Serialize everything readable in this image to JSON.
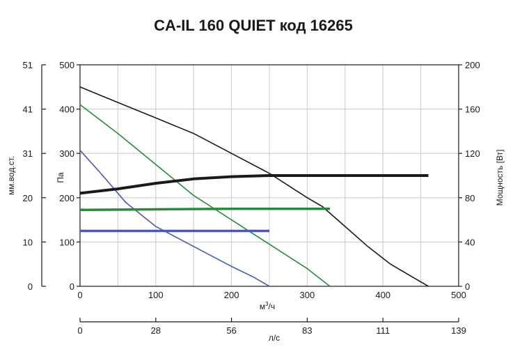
{
  "chart_data": {
    "type": "line",
    "title": "CA-IL 160 QUIET код 16265",
    "x": {
      "label_main": "м",
      "label_sup": "3",
      "label_tail": "/ч",
      "range": [
        0,
        500
      ],
      "ticks": [
        "0",
        "100",
        "200",
        "300",
        "400",
        "500"
      ]
    },
    "x2": {
      "label": "л/с",
      "range": [
        0,
        139
      ],
      "ticks": [
        "0",
        "28",
        "56",
        "83",
        "111",
        "139"
      ]
    },
    "y": {
      "label": "Па",
      "range": [
        0,
        500
      ],
      "ticks": [
        "0",
        "100",
        "200",
        "300",
        "400",
        "500"
      ]
    },
    "y_left2": {
      "label": "мм.вод.ст.",
      "range": [
        0,
        51
      ],
      "ticks": [
        "0",
        "10",
        "20",
        "31",
        "41",
        "51"
      ]
    },
    "y_right": {
      "label": "Мощность [Вт]",
      "range": [
        0,
        200
      ],
      "ticks": [
        "0",
        "40",
        "80",
        "120",
        "160",
        "200"
      ]
    },
    "grid": true,
    "series": [
      {
        "kind": "pressure",
        "color": "#1a1a1a",
        "points": [
          [
            0,
            450
          ],
          [
            50,
            415
          ],
          [
            100,
            380
          ],
          [
            150,
            345
          ],
          [
            200,
            300
          ],
          [
            250,
            255
          ],
          [
            300,
            200
          ],
          [
            320,
            180
          ],
          [
            350,
            135
          ],
          [
            380,
            90
          ],
          [
            410,
            50
          ],
          [
            440,
            20
          ],
          [
            460,
            0
          ]
        ]
      },
      {
        "kind": "pressure",
        "color": "#2a8a3a",
        "points": [
          [
            0,
            410
          ],
          [
            50,
            345
          ],
          [
            100,
            275
          ],
          [
            150,
            205
          ],
          [
            200,
            150
          ],
          [
            250,
            95
          ],
          [
            300,
            40
          ],
          [
            330,
            0
          ]
        ]
      },
      {
        "kind": "pressure",
        "color": "#4a5aa8",
        "points": [
          [
            0,
            307
          ],
          [
            30,
            250
          ],
          [
            60,
            190
          ],
          [
            100,
            135
          ],
          [
            150,
            90
          ],
          [
            200,
            45
          ],
          [
            230,
            20
          ],
          [
            250,
            0
          ]
        ]
      },
      {
        "kind": "power",
        "color": "#1a1a1a",
        "points": [
          [
            0,
            84
          ],
          [
            50,
            88
          ],
          [
            100,
            93
          ],
          [
            150,
            97
          ],
          [
            200,
            99
          ],
          [
            250,
            100
          ],
          [
            300,
            100
          ],
          [
            400,
            100
          ],
          [
            460,
            100
          ]
        ]
      },
      {
        "kind": "power",
        "color": "#2a8a3a",
        "points": [
          [
            0,
            69
          ],
          [
            100,
            69.5
          ],
          [
            200,
            70
          ],
          [
            330,
            70
          ]
        ]
      },
      {
        "kind": "power",
        "color": "#4a5aa8",
        "points": [
          [
            0,
            50
          ],
          [
            100,
            50
          ],
          [
            250,
            50
          ]
        ]
      }
    ]
  }
}
